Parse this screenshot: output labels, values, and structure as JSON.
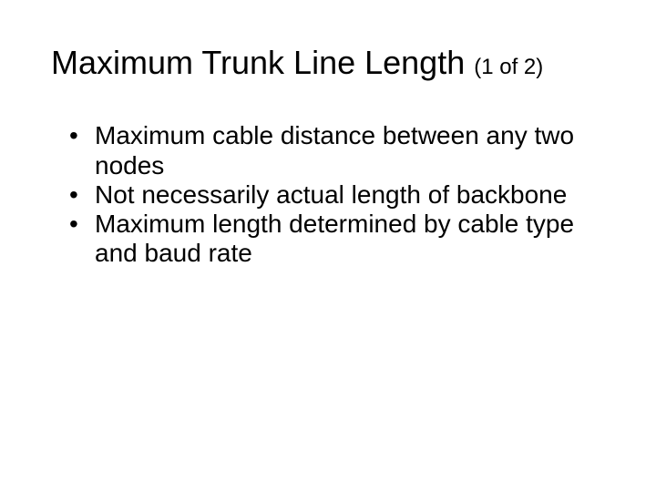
{
  "slide": {
    "title_main": "Maximum Trunk Line Length ",
    "title_sub": "(1 of 2)",
    "bullets": [
      "Maximum cable distance between any two nodes",
      "Not necessarily actual length of backbone",
      "Maximum length determined by cable type and baud rate"
    ]
  },
  "style": {
    "background_color": "#ffffff",
    "text_color": "#000000",
    "font_family": "Arial",
    "title_fontsize_pt": 36,
    "title_sub_fontsize_pt": 24,
    "body_fontsize_pt": 28,
    "bullet_glyph": "•"
  }
}
